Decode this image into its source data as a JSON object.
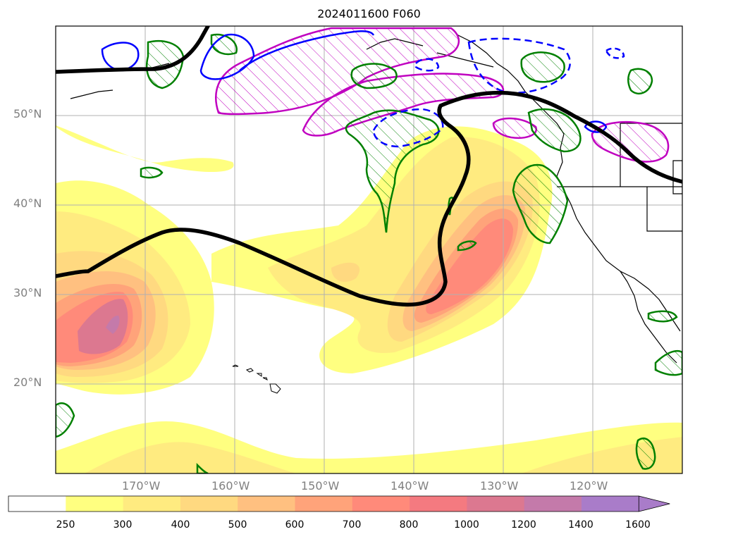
{
  "title": "2024011600 F060",
  "map": {
    "projection": "plate-carree",
    "lon_range": [
      -180,
      -110
    ],
    "lat_range": [
      10,
      60
    ],
    "lat_labels": [
      "50°N",
      "40°N",
      "30°N",
      "20°N"
    ],
    "lon_labels": [
      "170°W",
      "160°W",
      "150°W",
      "140°W",
      "130°W",
      "120°W"
    ],
    "grid": true
  },
  "colorbar": {
    "levels": [
      "250",
      "300",
      "400",
      "500",
      "600",
      "700",
      "800",
      "1000",
      "1200",
      "1400",
      "1600"
    ],
    "colors": [
      "#ffffff",
      "#ffff80",
      "#ffeb80",
      "#ffd980",
      "#ffc080",
      "#ffa37a",
      "#ff8a7a",
      "#f47a80",
      "#dc7890",
      "#c47aaa",
      "#a97cc9"
    ],
    "extend": "max"
  },
  "legend_colors": {
    "jet_contour": "#000000",
    "magenta_contour": "#c000c0",
    "green_contour": "#008000",
    "blue_contour": "#0000ff"
  }
}
